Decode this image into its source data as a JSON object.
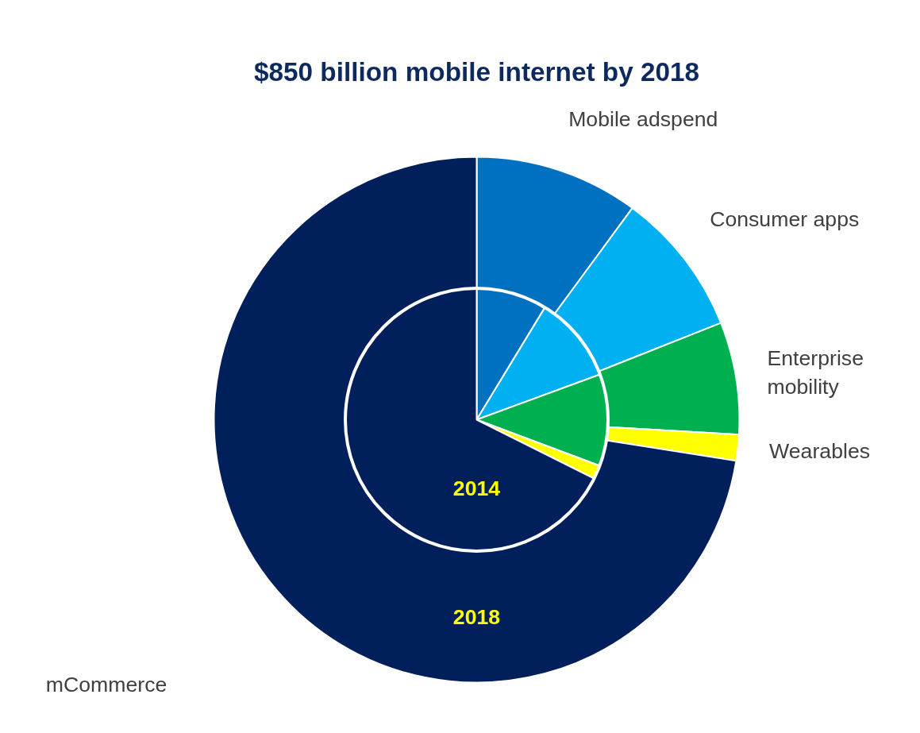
{
  "chart_data": {
    "type": "pie",
    "title": "$850 billion mobile internet by 2018",
    "categories": [
      "Mobile adspend",
      "Consumer apps",
      "Enterprise mobility",
      "Wearables",
      "mCommerce"
    ],
    "colors": [
      "#0070c0",
      "#00b0f0",
      "#00b050",
      "#ffff00",
      "#001f5b"
    ],
    "series": [
      {
        "name": "2018",
        "values": [
          10.1,
          8.9,
          6.9,
          1.6,
          72.5
        ]
      },
      {
        "name": "2014",
        "values": [
          8.7,
          10.7,
          11.3,
          1.7,
          67.6
        ]
      }
    ]
  }
}
